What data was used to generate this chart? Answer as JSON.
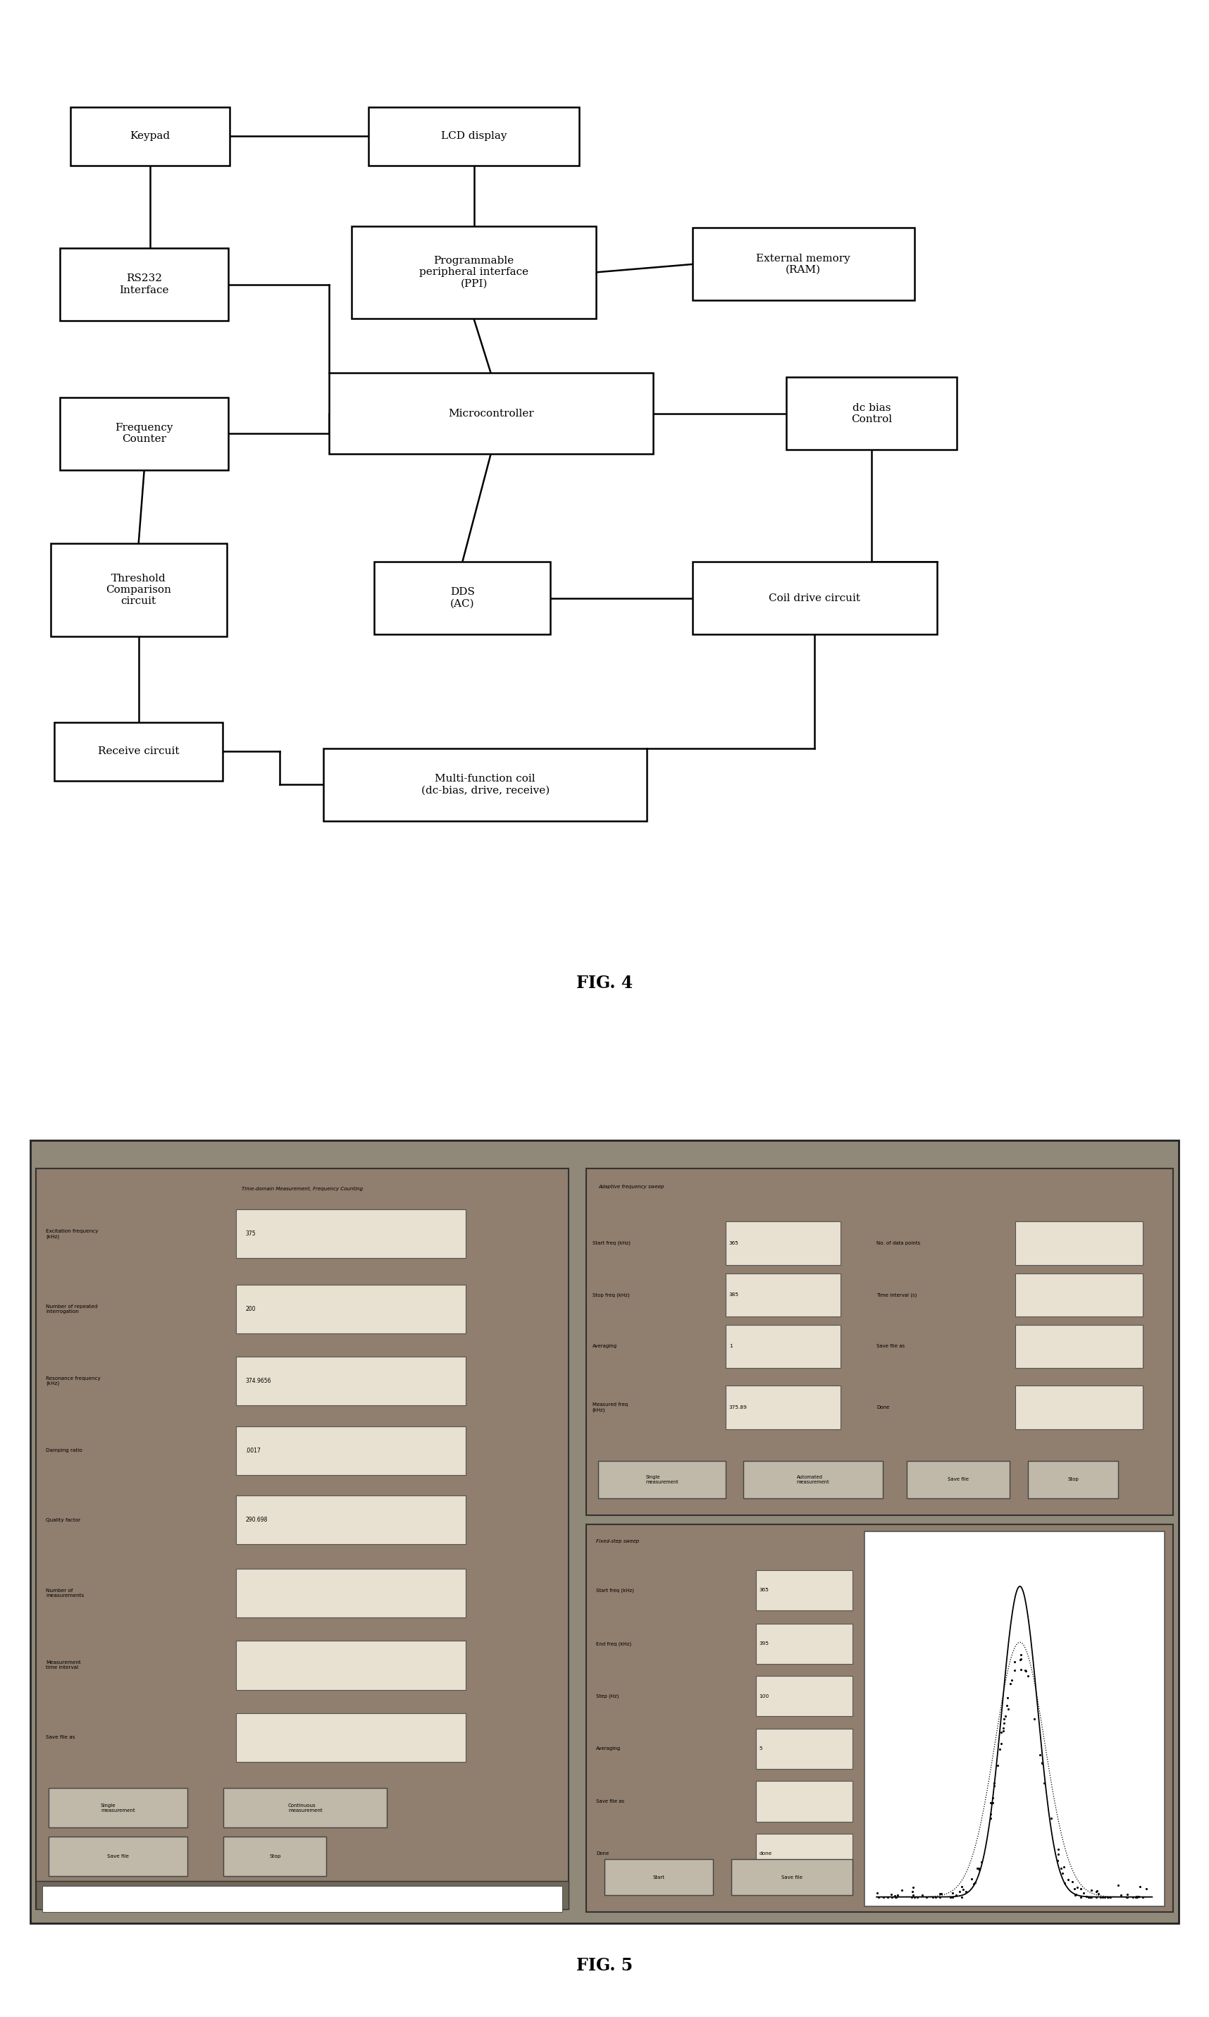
{
  "fig4_title": "FIG. 4",
  "fig5_title": "FIG. 5",
  "fig4_boxes": {
    "keypad": [
      0.1,
      0.895,
      0.14,
      0.058
    ],
    "lcd": [
      0.385,
      0.895,
      0.185,
      0.058
    ],
    "ppi": [
      0.385,
      0.76,
      0.215,
      0.092
    ],
    "extmem": [
      0.675,
      0.768,
      0.195,
      0.072
    ],
    "rs232": [
      0.095,
      0.748,
      0.148,
      0.072
    ],
    "micro": [
      0.4,
      0.62,
      0.285,
      0.08
    ],
    "dcbias": [
      0.735,
      0.62,
      0.15,
      0.072
    ],
    "freqcnt": [
      0.095,
      0.6,
      0.148,
      0.072
    ],
    "threshold": [
      0.09,
      0.445,
      0.155,
      0.092
    ],
    "dds": [
      0.375,
      0.437,
      0.155,
      0.072
    ],
    "coildrive": [
      0.685,
      0.437,
      0.215,
      0.072
    ],
    "receive": [
      0.09,
      0.285,
      0.148,
      0.058
    ],
    "multicoil": [
      0.395,
      0.252,
      0.285,
      0.072
    ]
  },
  "fig4_labels": {
    "keypad": "Keypad",
    "lcd": "LCD display",
    "ppi": "Programmable\nperipheral interface\n(PPI)",
    "extmem": "External memory\n(RAM)",
    "rs232": "RS232\nInterface",
    "micro": "Microcontroller",
    "dcbias": "dc bias\nControl",
    "freqcnt": "Frequency\nCounter",
    "threshold": "Threshold\nComparison\ncircuit",
    "dds": "DDS\n(AC)",
    "coildrive": "Coil drive circuit",
    "receive": "Receive circuit",
    "multicoil": "Multi-function coil\n(dc-bias, drive, receive)"
  },
  "ui_bg_color": "#908878",
  "ui_panel_color": "#907e6e",
  "ui_field_color": "#e8e0d0",
  "ui_btn_color": "#c0b8a8"
}
